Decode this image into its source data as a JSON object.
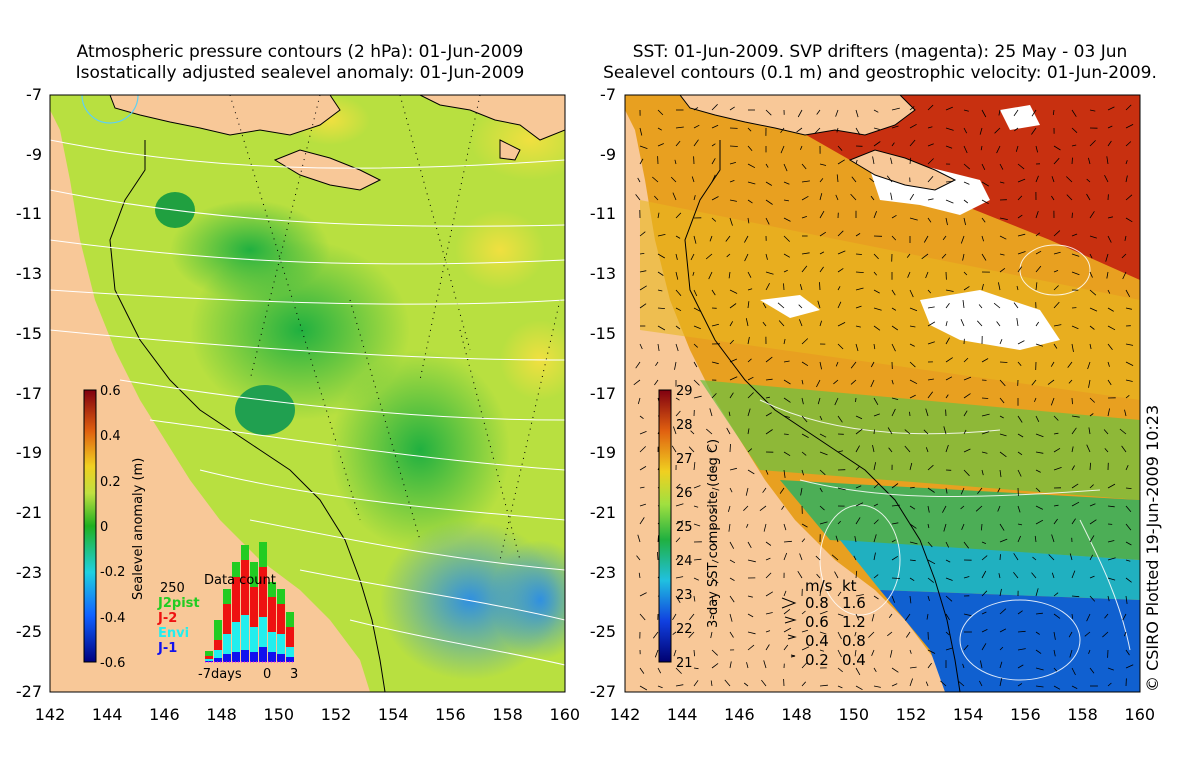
{
  "left_panel": {
    "title_line1": "Atmospheric pressure contours (2 hPa): 01-Jun-2009",
    "title_line2": "Isostatically adjusted sealevel anomaly: 01-Jun-2009",
    "colorbar": {
      "label": "Sealevel anomaly (m)",
      "ticks": [
        "0.6",
        "0.4",
        "0.2",
        "0",
        "-0.2",
        "-0.4",
        "-0.6"
      ]
    },
    "data_count": {
      "title": "Data count",
      "max_label": "250",
      "x_labels": [
        "-7days",
        "0",
        "3"
      ],
      "legend": [
        {
          "name": "J2pist",
          "color": "#22cc22"
        },
        {
          "name": "J-2",
          "color": "#ee1111"
        },
        {
          "name": "Envi",
          "color": "#22eeee"
        },
        {
          "name": "J-1",
          "color": "#1111ee"
        }
      ]
    }
  },
  "right_panel": {
    "title_line1": "SST: 01-Jun-2009. SVP drifters (magenta): 25 May - 03 Jun",
    "title_line2": "Sealevel contours (0.1 m) and geostrophic velocity: 01-Jun-2009.",
    "colorbar": {
      "label": "3-day SST composite (deg C)",
      "ticks": [
        "29",
        "28",
        "27",
        "26",
        "25",
        "24",
        "23",
        "22",
        "21"
      ]
    },
    "velocity_legend": {
      "header_ms": "m/s",
      "header_kt": "kt",
      "rows": [
        {
          "ms": "0.8",
          "kt": "1.6"
        },
        {
          "ms": "0.6",
          "kt": "1.2"
        },
        {
          "ms": "0.4",
          "kt": "0.8"
        },
        {
          "ms": "0.2",
          "kt": "0.4"
        }
      ]
    }
  },
  "axes": {
    "y_ticks": [
      "-7",
      "-9",
      "-11",
      "-13",
      "-15",
      "-17",
      "-19",
      "-21",
      "-23",
      "-25",
      "-27"
    ],
    "x_ticks": [
      "142",
      "144",
      "146",
      "148",
      "150",
      "152",
      "154",
      "156",
      "158",
      "160"
    ]
  },
  "credit": "© CSIRO Plotted 19-Jun-2009 10:23",
  "colors": {
    "land": "#f8c898",
    "ocean_anomaly": "#b8e040",
    "sst_warm": "#c83010",
    "sst_cool": "#1060d0"
  }
}
